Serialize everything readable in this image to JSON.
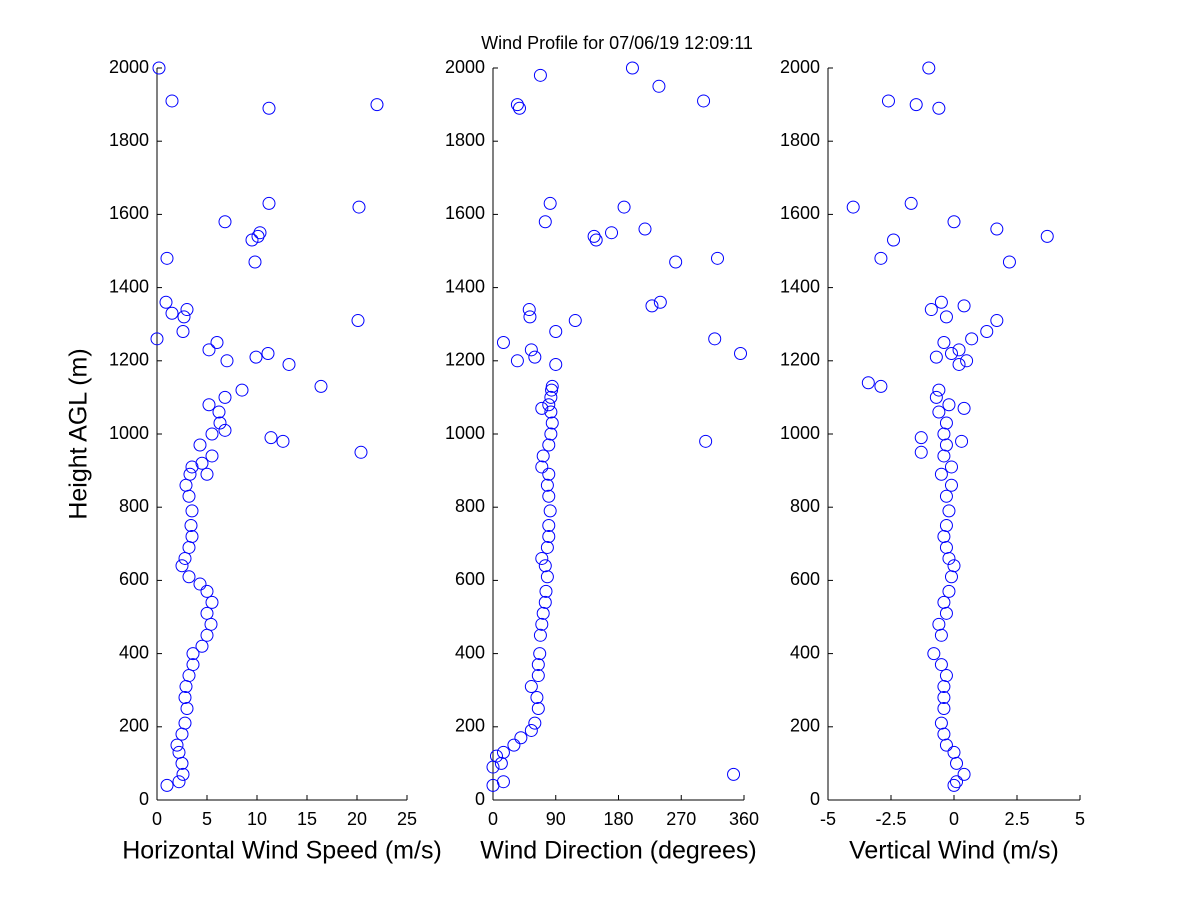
{
  "title": "Wind Profile for  07/06/19 12:09:11",
  "chart_data": [
    {
      "type": "scatter",
      "xlabel": "Horizontal Wind Speed (m/s)",
      "ylabel": "Height AGL (m)",
      "color": "#0000ff",
      "xlim": [
        0,
        25
      ],
      "xticks": [
        0,
        5,
        10,
        15,
        20,
        25
      ],
      "ylim": [
        0,
        2000
      ],
      "yticks": [
        0,
        200,
        400,
        600,
        800,
        1000,
        1200,
        1400,
        1600,
        1800,
        2000
      ],
      "x": [
        1.0,
        2.2,
        2.6,
        2.5,
        2.2,
        2.0,
        2.5,
        2.8,
        3.0,
        2.8,
        2.9,
        3.2,
        3.6,
        3.6,
        4.5,
        5.0,
        5.4,
        5.0,
        5.5,
        5.0,
        4.3,
        3.2,
        2.5,
        2.8,
        3.2,
        3.5,
        3.4,
        3.5,
        3.2,
        2.9,
        3.3,
        5.0,
        3.5,
        4.5,
        5.5,
        4.3,
        5.5,
        6.8,
        6.3,
        6.2,
        5.2,
        6.8,
        8.5,
        16.4,
        20.4,
        12.6,
        11.4,
        13.2,
        7.0,
        9.9,
        11.1,
        5.2,
        6.0,
        0,
        2.6,
        20.1,
        2.7,
        1.5,
        3.0,
        0.9,
        9.8,
        1.0,
        9.5,
        10.1,
        10.3,
        6.8,
        20.2,
        11.2,
        11.2,
        22.0,
        1.5,
        0.2
      ],
      "y": [
        40,
        50,
        70,
        100,
        130,
        150,
        180,
        210,
        250,
        280,
        310,
        340,
        370,
        400,
        420,
        450,
        480,
        510,
        540,
        570,
        590,
        610,
        640,
        660,
        690,
        720,
        750,
        790,
        830,
        860,
        890,
        890,
        910,
        920,
        940,
        970,
        1000,
        1010,
        1030,
        1060,
        1080,
        1100,
        1120,
        1130,
        950,
        980,
        990,
        1190,
        1200,
        1210,
        1220,
        1230,
        1250,
        1260,
        1280,
        1310,
        1320,
        1330,
        1340,
        1360,
        1470,
        1480,
        1530,
        1540,
        1550,
        1580,
        1620,
        1630,
        1890,
        1900,
        1910,
        2000
      ]
    },
    {
      "type": "scatter",
      "xlabel": "Wind Direction (degrees)",
      "color": "#0000ff",
      "xlim": [
        0,
        360
      ],
      "xticks": [
        0,
        90,
        180,
        270,
        360
      ],
      "ylim": [
        0,
        2000
      ],
      "yticks": [
        0,
        200,
        400,
        600,
        800,
        1000,
        1200,
        1400,
        1600,
        1800,
        2000
      ],
      "x": [
        0,
        15,
        345,
        0,
        12,
        5,
        15,
        30,
        40,
        55,
        60,
        65,
        63,
        55,
        65,
        65,
        67,
        68,
        70,
        72,
        75,
        76,
        78,
        75,
        70,
        78,
        80,
        80,
        82,
        80,
        78,
        80,
        70,
        72,
        80,
        83,
        85,
        83,
        80,
        83,
        84,
        85,
        70,
        305,
        90,
        35,
        60,
        355,
        55,
        15,
        318,
        90,
        118,
        53,
        52,
        228,
        240,
        262,
        322,
        148,
        145,
        170,
        218,
        75,
        188,
        82,
        38,
        35,
        302,
        238,
        68,
        200
      ],
      "y": [
        40,
        50,
        70,
        90,
        100,
        120,
        130,
        150,
        170,
        190,
        210,
        250,
        280,
        310,
        340,
        370,
        400,
        450,
        480,
        510,
        540,
        570,
        610,
        640,
        660,
        690,
        720,
        750,
        790,
        830,
        860,
        890,
        910,
        940,
        970,
        1000,
        1030,
        1060,
        1080,
        1100,
        1120,
        1130,
        1070,
        980,
        1190,
        1200,
        1210,
        1220,
        1230,
        1250,
        1260,
        1280,
        1310,
        1320,
        1340,
        1350,
        1360,
        1470,
        1480,
        1530,
        1540,
        1550,
        1560,
        1580,
        1620,
        1630,
        1890,
        1900,
        1910,
        1950,
        1980,
        2000
      ]
    },
    {
      "type": "scatter",
      "xlabel": "Vertical Wind (m/s)",
      "color": "#0000ff",
      "xlim": [
        -5,
        5
      ],
      "xticks": [
        -5,
        -2.5,
        0,
        2.5,
        5
      ],
      "ylim": [
        0,
        2000
      ],
      "yticks": [
        0,
        200,
        400,
        600,
        800,
        1000,
        1200,
        1400,
        1600,
        1800,
        2000
      ],
      "x": [
        0,
        0.1,
        0.4,
        0.1,
        0,
        -0.3,
        -0.4,
        -0.5,
        -0.4,
        -0.4,
        -0.4,
        -0.3,
        -0.5,
        -0.8,
        -0.5,
        -0.6,
        -0.3,
        -0.4,
        -0.2,
        -0.1,
        0,
        -0.2,
        -0.3,
        -0.4,
        -0.3,
        -0.2,
        -0.3,
        -0.1,
        -0.5,
        -0.1,
        -0.4,
        -0.3,
        -0.4,
        -0.3,
        -0.6,
        -0.2,
        -0.7,
        -0.6,
        -2.9,
        -1.3,
        -1.3,
        0.3,
        0.4,
        -3.4,
        0.2,
        0.5,
        -0.7,
        -0.1,
        0.2,
        -0.4,
        0.7,
        1.3,
        1.7,
        -0.3,
        -0.9,
        0.4,
        -0.5,
        2.2,
        -2.9,
        -2.4,
        3.7,
        1.7,
        0,
        -4.0,
        -1.7,
        -0.6,
        -1.5,
        -2.6,
        -1.0
      ],
      "y": [
        40,
        50,
        70,
        100,
        130,
        150,
        180,
        210,
        250,
        280,
        310,
        340,
        370,
        400,
        450,
        480,
        510,
        540,
        570,
        610,
        640,
        660,
        690,
        720,
        750,
        790,
        830,
        860,
        890,
        910,
        940,
        970,
        1000,
        1030,
        1060,
        1080,
        1100,
        1120,
        1130,
        950,
        990,
        980,
        1070,
        1140,
        1190,
        1200,
        1210,
        1220,
        1230,
        1250,
        1260,
        1280,
        1310,
        1320,
        1340,
        1350,
        1360,
        1470,
        1480,
        1530,
        1540,
        1560,
        1580,
        1620,
        1630,
        1890,
        1900,
        1910,
        2000
      ]
    }
  ]
}
